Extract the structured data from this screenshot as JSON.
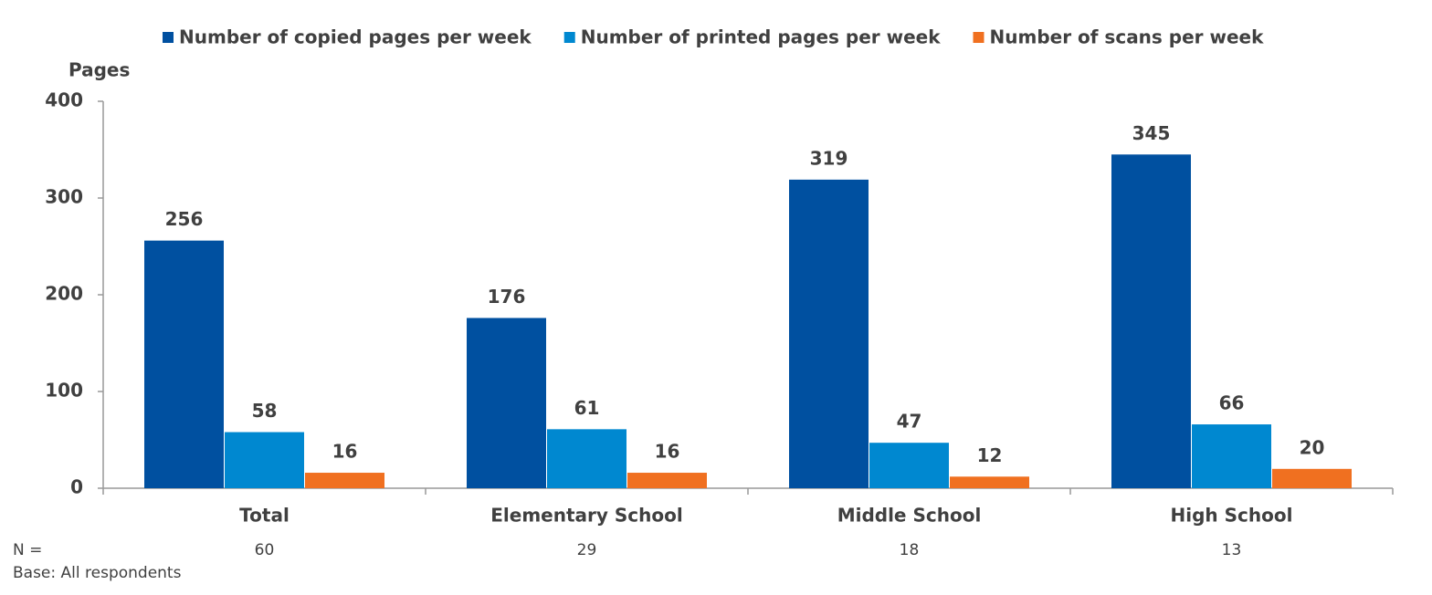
{
  "chart_data": {
    "type": "bar",
    "y_label": "Pages",
    "categories": [
      "Total",
      "Elementary School",
      "Middle School",
      "High School"
    ],
    "series": [
      {
        "name": "Number of copied pages per week",
        "color": "#0050a0",
        "values": [
          256,
          176,
          319,
          345
        ]
      },
      {
        "name": "Number of printed pages per week",
        "color": "#0088d0",
        "values": [
          58,
          61,
          47,
          66
        ]
      },
      {
        "name": "Number of scans per week",
        "color": "#f07020",
        "values": [
          16,
          16,
          12,
          20
        ]
      }
    ],
    "ylim": [
      0,
      400
    ],
    "yticks": [
      0,
      100,
      200,
      300,
      400
    ],
    "legend": "top",
    "n_label": "N =",
    "n_values": [
      60,
      29,
      18,
      13
    ],
    "base_note": "Base: All respondents"
  }
}
